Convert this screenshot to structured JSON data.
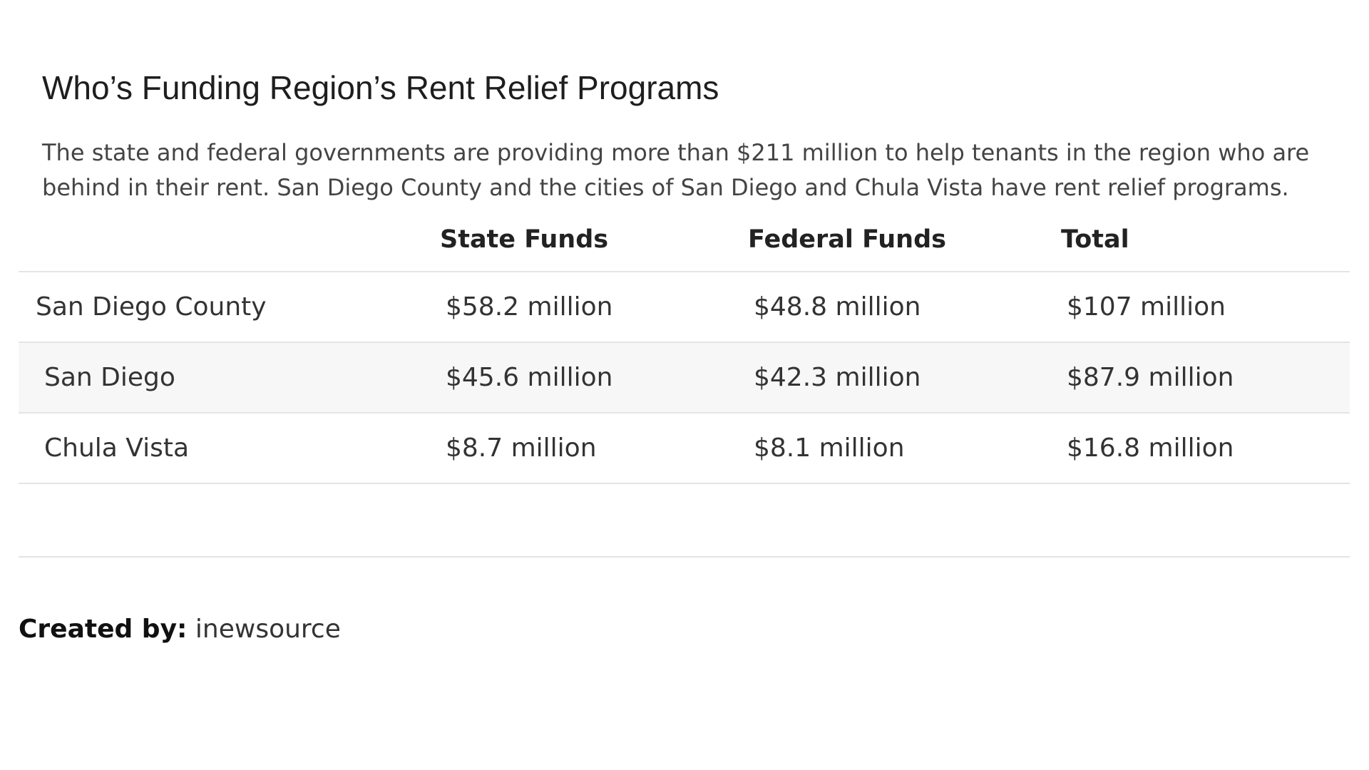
{
  "header": {
    "title": "Who’s Funding Region’s Rent Relief Programs",
    "description": "The state and federal governments are providing more than $211 million to help tenants in the region who are behind in their rent. San Diego County and the cities of San Diego and Chula Vista have rent relief programs."
  },
  "table": {
    "columns": [
      "",
      "State Funds",
      "Federal Funds",
      "Total"
    ],
    "rows": [
      [
        "San Diego County",
        "$58.2 million",
        "$48.8 million",
        "$107 million"
      ],
      [
        "San Diego",
        "$45.6 million",
        "$42.3 million",
        "$87.9 million"
      ],
      [
        "Chula Vista",
        "$8.7 million",
        "$8.1 million",
        "$16.8 million"
      ]
    ]
  },
  "footer": {
    "label": "Created by:",
    "source": "inewsource"
  }
}
